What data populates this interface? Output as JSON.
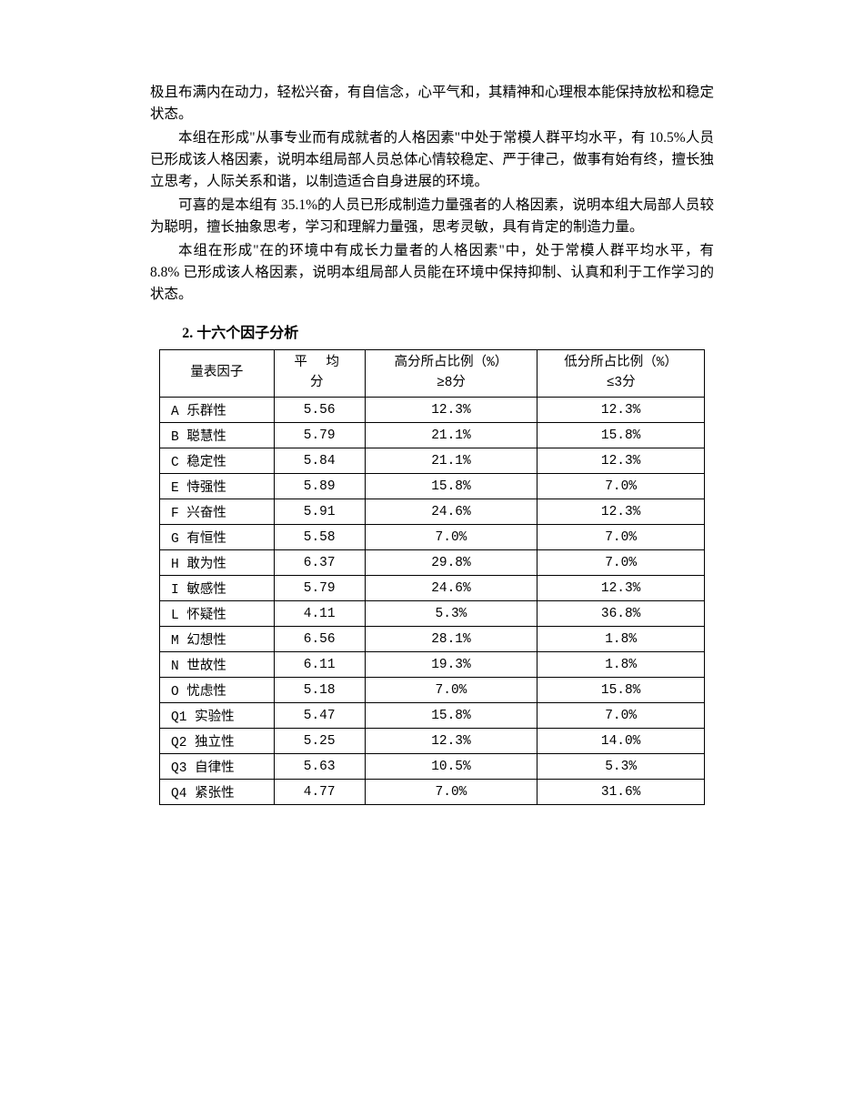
{
  "paragraphs": {
    "p1": "极且布满内在动力，轻松兴奋，有自信念，心平气和，其精神和心理根本能保持放松和稳定状态。",
    "p2": "本组在形成\"从事专业而有成就者的人格因素\"中处于常模人群平均水平，有 10.5%人员已形成该人格因素，说明本组局部人员总体心情较稳定、严于律己，做事有始有终，擅长独立思考，人际关系和谐，以制造适合自身进展的环境。",
    "p3": "可喜的是本组有 35.1%的人员已形成制造力量强者的人格因素，说明本组大局部人员较为聪明，擅长抽象思考，学习和理解力量强，思考灵敏，具有肯定的制造力量。",
    "p4": "本组在形成\"在的环境中有成长力量者的人格因素\"中，处于常模人群平均水平，有 8.8% 已形成该人格因素，说明本组局部人员能在环境中保持抑制、认真和利于工作学习的状态。"
  },
  "section_heading": "2. 十六个因子分析",
  "table": {
    "type": "table",
    "columns": [
      {
        "key": "factor",
        "label": "量表因子",
        "width": 126,
        "align": "left"
      },
      {
        "key": "avg",
        "label": "平 均 分",
        "width": 100,
        "align": "center"
      },
      {
        "key": "high",
        "label_line1": "高分所占比例（%）",
        "label_line2": "≥8分",
        "width": 190,
        "align": "center"
      },
      {
        "key": "low",
        "label_line1": "低分所占比例（%）",
        "label_line2": "≤3分",
        "width": 184,
        "align": "center"
      }
    ],
    "rows": [
      {
        "factor": "A 乐群性",
        "avg": "5.56",
        "high": "12.3%",
        "low": "12.3%"
      },
      {
        "factor": "B 聪慧性",
        "avg": "5.79",
        "high": "21.1%",
        "low": "15.8%"
      },
      {
        "factor": "C 稳定性",
        "avg": "5.84",
        "high": "21.1%",
        "low": "12.3%"
      },
      {
        "factor": "E 恃强性",
        "avg": "5.89",
        "high": "15.8%",
        "low": "7.0%"
      },
      {
        "factor": "F 兴奋性",
        "avg": "5.91",
        "high": "24.6%",
        "low": "12.3%"
      },
      {
        "factor": "G 有恒性",
        "avg": "5.58",
        "high": "7.0%",
        "low": "7.0%"
      },
      {
        "factor": "H 敢为性",
        "avg": "6.37",
        "high": "29.8%",
        "low": "7.0%"
      },
      {
        "factor": "I 敏感性",
        "avg": "5.79",
        "high": "24.6%",
        "low": "12.3%"
      },
      {
        "factor": "L 怀疑性",
        "avg": "4.11",
        "high": "5.3%",
        "low": "36.8%"
      },
      {
        "factor": "M 幻想性",
        "avg": "6.56",
        "high": "28.1%",
        "low": "1.8%"
      },
      {
        "factor": "N 世故性",
        "avg": "6.11",
        "high": "19.3%",
        "low": "1.8%"
      },
      {
        "factor": "O 忧虑性",
        "avg": "5.18",
        "high": "7.0%",
        "low": "15.8%"
      },
      {
        "factor": "Q1 实验性",
        "avg": "5.47",
        "high": "15.8%",
        "low": "7.0%"
      },
      {
        "factor": "Q2 独立性",
        "avg": "5.25",
        "high": "12.3%",
        "low": "14.0%"
      },
      {
        "factor": "Q3 自律性",
        "avg": "5.63",
        "high": "10.5%",
        "low": "5.3%"
      },
      {
        "factor": "Q4 紧张性",
        "avg": "4.77",
        "high": "7.0%",
        "low": "31.6%"
      }
    ],
    "border_color": "#000000",
    "background_color": "#ffffff",
    "header_fontsize": 14.5,
    "cell_fontsize": 14.5
  }
}
